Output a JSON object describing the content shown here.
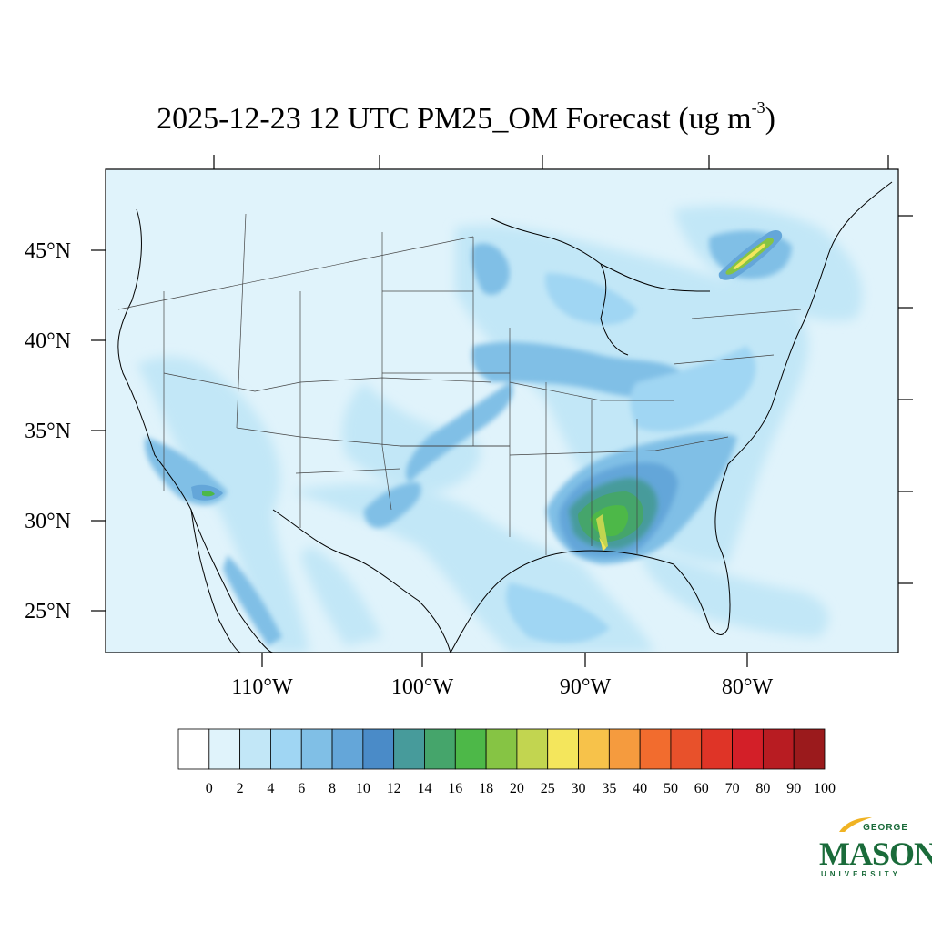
{
  "title": {
    "text": "2025-12-23 12 UTC PM25_OM Forecast (ug m",
    "exponent": "-3",
    "close": ")"
  },
  "axes": {
    "lat_labels": [
      "45°N",
      "40°N",
      "35°N",
      "30°N",
      "25°N"
    ],
    "lon_labels": [
      "110°W",
      "100°W",
      "90°W",
      "80°W"
    ]
  },
  "colorbar": {
    "levels": [
      "0",
      "2",
      "4",
      "6",
      "8",
      "10",
      "12",
      "14",
      "16",
      "18",
      "20",
      "25",
      "30",
      "35",
      "40",
      "50",
      "60",
      "70",
      "80",
      "90",
      "100"
    ],
    "colors": [
      "#ffffff",
      "#e0f3fb",
      "#c2e7f7",
      "#a0d6f3",
      "#80bfe6",
      "#64a6d9",
      "#4a8bc8",
      "#479b9b",
      "#45a56b",
      "#4db848",
      "#86c444",
      "#c2d550",
      "#f4e65c",
      "#f7c24a",
      "#f59b3e",
      "#f26c2e",
      "#e8512b",
      "#df3427",
      "#d31f28",
      "#b81c22",
      "#9b1a1c"
    ]
  },
  "map_colors": {
    "ocean": "#e0f3fb",
    "light": "#c2e7f7",
    "mid": "#a0d6f3",
    "medium": "#80bfe6",
    "strong": "#64a6d9",
    "heavy": "#4a8bc8",
    "teal": "#479b9b",
    "green": "#45a56b",
    "bright_green": "#4db848",
    "yellow": "#f4e65c"
  },
  "logo": {
    "top": "GEORGE",
    "main": "MASON",
    "bottom": "UNIVERSITY",
    "color": "#1a6b3a",
    "accent": "#f0b323"
  }
}
